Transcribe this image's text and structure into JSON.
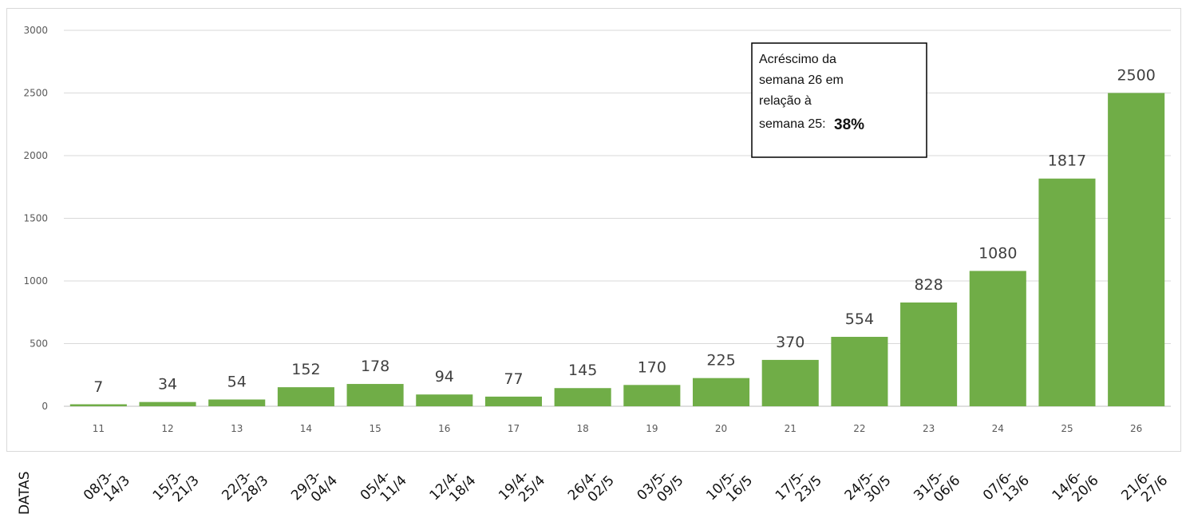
{
  "chart_data": {
    "type": "bar",
    "ylim": [
      0,
      3000
    ],
    "yticks": [
      0,
      500,
      1000,
      1500,
      2000,
      2500,
      3000
    ],
    "grid": true,
    "color": "#70ad47",
    "categories": [
      "11",
      "12",
      "13",
      "14",
      "15",
      "16",
      "17",
      "18",
      "19",
      "20",
      "21",
      "22",
      "23",
      "24",
      "25",
      "26"
    ],
    "dates": [
      [
        "08/3-",
        "14/3"
      ],
      [
        "15/3-",
        "21/3"
      ],
      [
        "22/3-",
        "28/3"
      ],
      [
        "29/3-",
        "04/4"
      ],
      [
        "05/4-",
        "11/4"
      ],
      [
        "12/4-",
        "18/4"
      ],
      [
        "19/4-",
        "25/4"
      ],
      [
        "26/4-",
        "02/5"
      ],
      [
        "03/5-",
        "09/5"
      ],
      [
        "10/5-",
        "16/5"
      ],
      [
        "17/5-",
        "23/5"
      ],
      [
        "24/5-",
        "30/5"
      ],
      [
        "31/5-",
        "06/6"
      ],
      [
        "07/6-",
        "13/6"
      ],
      [
        "14/6-",
        "20/6"
      ],
      [
        "21/6-",
        "27/6"
      ]
    ],
    "values": [
      7,
      34,
      54,
      152,
      178,
      94,
      77,
      145,
      170,
      225,
      370,
      554,
      828,
      1080,
      1817,
      2500
    ],
    "xlabel": "DATAS",
    "annotation": {
      "lines": [
        "Acréscimo da",
        "semana 26 em",
        "relação à",
        "semana 25:"
      ],
      "value": "38%"
    }
  }
}
